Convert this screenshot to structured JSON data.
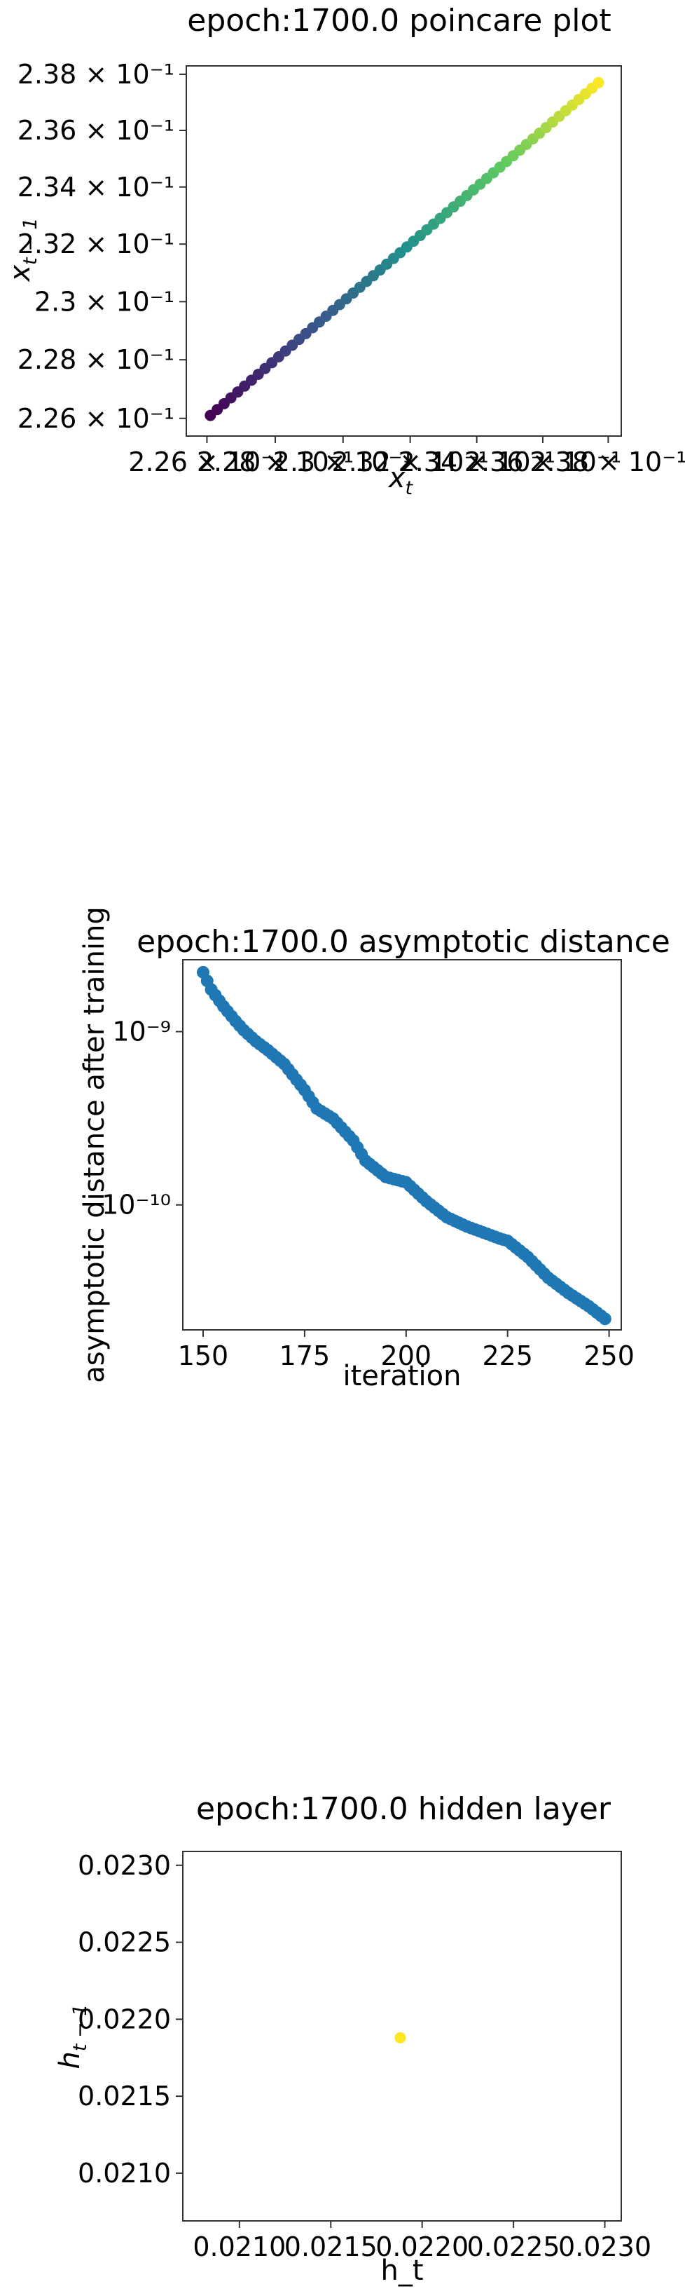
{
  "chart_data": [
    {
      "type": "scatter",
      "title": "epoch:1700.0 poincare plot",
      "xlabel": "x_t",
      "ylabel": "x_{t-1}",
      "xlim": [
        0.2254,
        0.2384
      ],
      "ylim": [
        0.2254,
        0.2383
      ],
      "xscale": "log",
      "yscale": "log",
      "xticks": [
        0.226,
        0.228,
        0.23,
        0.232,
        0.234,
        0.236,
        0.238
      ],
      "xtick_labels": [
        "2.26 × 10⁻¹",
        "2.28 × 10⁻¹",
        "2.3 × 10⁻¹",
        "2.32 × 10⁻¹",
        "2.34 × 10⁻¹",
        "2.36 × 10⁻¹",
        "2.38 × 10⁻¹"
      ],
      "yticks": [
        0.226,
        0.228,
        0.23,
        0.232,
        0.234,
        0.236,
        0.238
      ],
      "ytick_labels": [
        "2.26 × 10⁻¹",
        "2.28 × 10⁻¹",
        "2.3 × 10⁻¹",
        "2.32 × 10⁻¹",
        "2.34 × 10⁻¹",
        "2.36 × 10⁻¹",
        "2.38 × 10⁻¹"
      ],
      "x": [
        0.2261,
        0.2263,
        0.2265,
        0.2267,
        0.2269,
        0.2271,
        0.2273,
        0.2275,
        0.2277,
        0.2279,
        0.2281,
        0.2283,
        0.2285,
        0.2287,
        0.2289,
        0.2291,
        0.2293,
        0.2295,
        0.2297,
        0.2299,
        0.2301,
        0.2303,
        0.2305,
        0.2307,
        0.2309,
        0.2311,
        0.2313,
        0.2315,
        0.2317,
        0.2319,
        0.2321,
        0.2323,
        0.2325,
        0.2327,
        0.2329,
        0.2331,
        0.2333,
        0.2335,
        0.2337,
        0.2339,
        0.2341,
        0.2343,
        0.2345,
        0.2347,
        0.2349,
        0.2351,
        0.2353,
        0.2355,
        0.2357,
        0.2359,
        0.2361,
        0.2363,
        0.2365,
        0.2367,
        0.2369,
        0.2371,
        0.2373,
        0.2375,
        0.2377
      ],
      "y": [
        0.2261,
        0.2263,
        0.2265,
        0.2267,
        0.2269,
        0.2271,
        0.2273,
        0.2275,
        0.2277,
        0.2279,
        0.2281,
        0.2283,
        0.2285,
        0.2287,
        0.2289,
        0.2291,
        0.2293,
        0.2295,
        0.2297,
        0.2299,
        0.2301,
        0.2303,
        0.2305,
        0.2307,
        0.2309,
        0.2311,
        0.2313,
        0.2315,
        0.2317,
        0.2319,
        0.2321,
        0.2323,
        0.2325,
        0.2327,
        0.2329,
        0.2331,
        0.2333,
        0.2335,
        0.2337,
        0.2339,
        0.2341,
        0.2343,
        0.2345,
        0.2347,
        0.2349,
        0.2351,
        0.2353,
        0.2355,
        0.2357,
        0.2359,
        0.2361,
        0.2363,
        0.2365,
        0.2367,
        0.2369,
        0.2371,
        0.2373,
        0.2375,
        0.2377
      ],
      "colormap": "viridis",
      "grid": false,
      "legend": "none"
    },
    {
      "type": "scatter",
      "title": "epoch:1700.0 asymptotic distance",
      "xlabel": "iteration",
      "ylabel": "asymptotic distance after training",
      "xlim": [
        145,
        253
      ],
      "ylim": [
        1.9e-11,
        2.6e-09
      ],
      "yscale": "log",
      "xticks": [
        150,
        175,
        200,
        225,
        250
      ],
      "xtick_labels": [
        "150",
        "175",
        "200",
        "225",
        "250"
      ],
      "yticks": [
        1e-10,
        1e-09
      ],
      "ytick_labels": [
        "10⁻¹⁰",
        "10⁻⁹"
      ],
      "color": "#1f77b4",
      "x_start": 150,
      "x_end": 249,
      "y_anchors": [
        [
          150,
          2.2e-09
        ],
        [
          152,
          1.75e-09
        ],
        [
          155,
          1.4e-09
        ],
        [
          158,
          1.15e-09
        ],
        [
          160,
          1.02e-09
        ],
        [
          163,
          8.8e-10
        ],
        [
          166,
          7.8e-10
        ],
        [
          170,
          6.5e-10
        ],
        [
          175,
          4.6e-10
        ],
        [
          178,
          3.6e-10
        ],
        [
          182,
          3.15e-10
        ],
        [
          187,
          2.35e-10
        ],
        [
          190,
          1.8e-10
        ],
        [
          195,
          1.45e-10
        ],
        [
          200,
          1.35e-10
        ],
        [
          205,
          1.05e-10
        ],
        [
          210,
          8.5e-11
        ],
        [
          215,
          7.5e-11
        ],
        [
          220,
          6.8e-11
        ],
        [
          223,
          6.4e-11
        ],
        [
          225,
          6.2e-11
        ],
        [
          230,
          5e-11
        ],
        [
          235,
          3.8e-11
        ],
        [
          240,
          3.1e-11
        ],
        [
          245,
          2.6e-11
        ],
        [
          249,
          2.2e-11
        ]
      ],
      "grid": false,
      "legend": "none"
    },
    {
      "type": "scatter",
      "title": "epoch:1700.0 hidden layer",
      "xlabel": "h_t",
      "ylabel": "h_{t-1}",
      "xlim": [
        0.02069,
        0.02309
      ],
      "ylim": [
        0.02069,
        0.02309
      ],
      "xticks": [
        0.021,
        0.0215,
        0.022,
        0.0225,
        0.023
      ],
      "xtick_labels": [
        "0.0210",
        "0.0215",
        "0.0220",
        "0.0225",
        "0.0230"
      ],
      "yticks": [
        0.021,
        0.0215,
        0.022,
        0.0225,
        0.023
      ],
      "ytick_labels": [
        "0.0210",
        "0.0215",
        "0.0220",
        "0.0225",
        "0.0230"
      ],
      "x": [
        0.02188
      ],
      "y": [
        0.02188
      ],
      "color": "#fde725",
      "grid": false,
      "legend": "none"
    }
  ]
}
